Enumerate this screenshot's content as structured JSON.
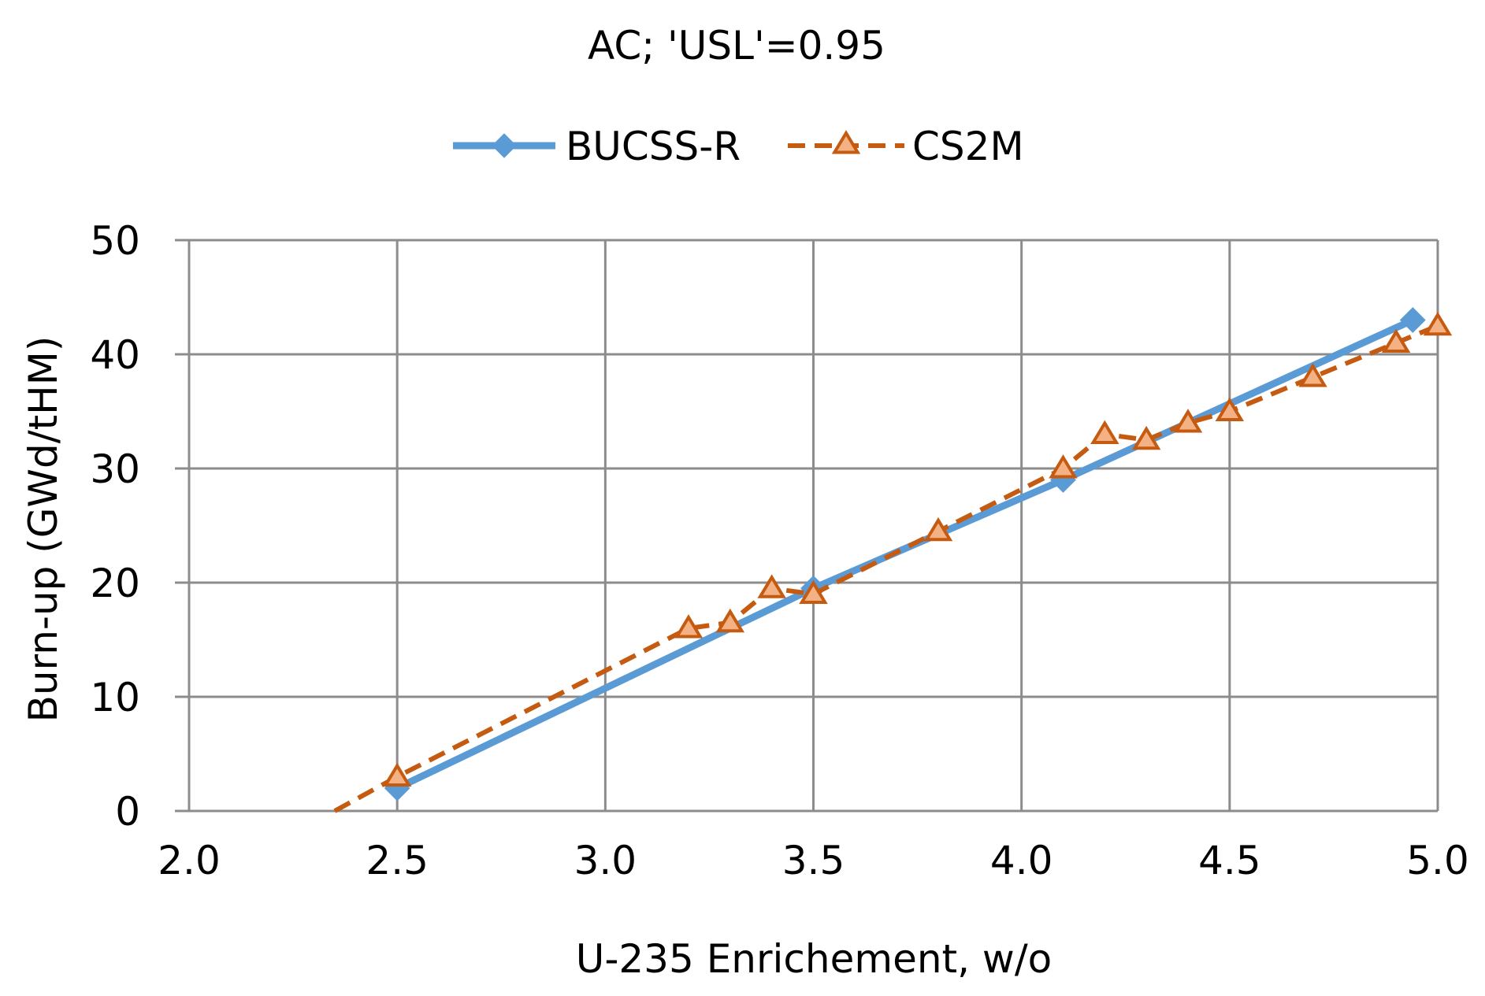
{
  "chart_data": {
    "type": "line",
    "title": "AC; 'USL'=0.95",
    "xlabel": "U-235 Enrichement,  w/o",
    "ylabel": "Burn-up (GWd/tHM)",
    "xlim": [
      2.0,
      5.0
    ],
    "ylim": [
      0,
      50
    ],
    "x_ticks": [
      "2.0",
      "2.5",
      "3.0",
      "3.5",
      "4.0",
      "4.5",
      "5.0"
    ],
    "y_ticks": [
      "0",
      "10",
      "20",
      "30",
      "40",
      "50"
    ],
    "grid": true,
    "legend_position": "top",
    "series": [
      {
        "name": "BUCSS-R",
        "color": "#5B9BD5",
        "marker": "diamond",
        "line_style": "solid",
        "points": [
          {
            "x": 2.5,
            "y": 2.0
          },
          {
            "x": 3.5,
            "y": 19.5
          },
          {
            "x": 4.1,
            "y": 29.0
          },
          {
            "x": 4.94,
            "y": 43.0
          }
        ]
      },
      {
        "name": "CS2M",
        "color": "#C55A11",
        "marker": "triangle",
        "line_style": "dashed",
        "points": [
          {
            "x": 2.35,
            "y": 0.0
          },
          {
            "x": 2.5,
            "y": 3.0
          },
          {
            "x": 3.2,
            "y": 16.0
          },
          {
            "x": 3.3,
            "y": 16.5
          },
          {
            "x": 3.4,
            "y": 19.5
          },
          {
            "x": 3.5,
            "y": 19.0
          },
          {
            "x": 3.8,
            "y": 24.5
          },
          {
            "x": 4.1,
            "y": 30.0
          },
          {
            "x": 4.2,
            "y": 33.0
          },
          {
            "x": 4.3,
            "y": 32.5
          },
          {
            "x": 4.4,
            "y": 34.0
          },
          {
            "x": 4.5,
            "y": 35.0
          },
          {
            "x": 4.7,
            "y": 38.0
          },
          {
            "x": 4.9,
            "y": 41.0
          },
          {
            "x": 5.0,
            "y": 42.5
          }
        ]
      }
    ]
  }
}
